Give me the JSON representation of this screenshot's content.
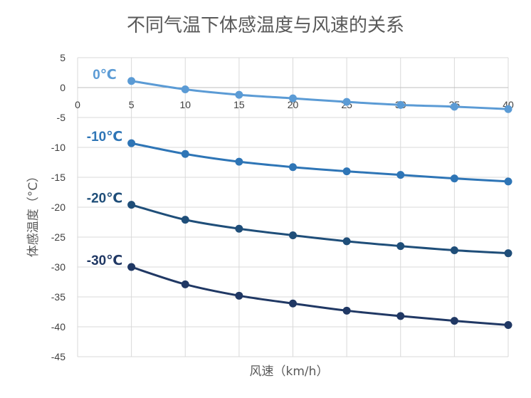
{
  "chart_data": {
    "type": "line",
    "title": "不同气温下体感温度与风速的关系",
    "xlabel": "风速（km/h）",
    "ylabel": "体感温度（°C）",
    "x": [
      5,
      10,
      15,
      20,
      25,
      30,
      35,
      40
    ],
    "xlim": [
      0,
      40
    ],
    "x_ticks": [
      "0",
      "5",
      "10",
      "15",
      "20",
      "25",
      "30",
      "35",
      "40"
    ],
    "ylim": [
      -45,
      5
    ],
    "y_ticks": [
      "5",
      "0",
      "-5",
      "-10",
      "-15",
      "-20",
      "-25",
      "-30",
      "-35",
      "-40",
      "-45"
    ],
    "grid": true,
    "series": [
      {
        "name": "0℃",
        "color": "#5b9bd5",
        "values": [
          1.1,
          -0.3,
          -1.2,
          -1.8,
          -2.4,
          -2.9,
          -3.2,
          -3.6
        ]
      },
      {
        "name": "-10℃",
        "color": "#2e75b6",
        "values": [
          -9.3,
          -11.1,
          -12.4,
          -13.3,
          -14.0,
          -14.6,
          -15.2,
          -15.7
        ]
      },
      {
        "name": "-20℃",
        "color": "#1f4e79",
        "values": [
          -19.6,
          -22.1,
          -23.6,
          -24.7,
          -25.7,
          -26.5,
          -27.2,
          -27.7
        ]
      },
      {
        "name": "-30℃",
        "color": "#203864",
        "values": [
          -30.0,
          -32.9,
          -34.8,
          -36.1,
          -37.3,
          -38.2,
          -39.0,
          -39.7
        ]
      }
    ]
  }
}
